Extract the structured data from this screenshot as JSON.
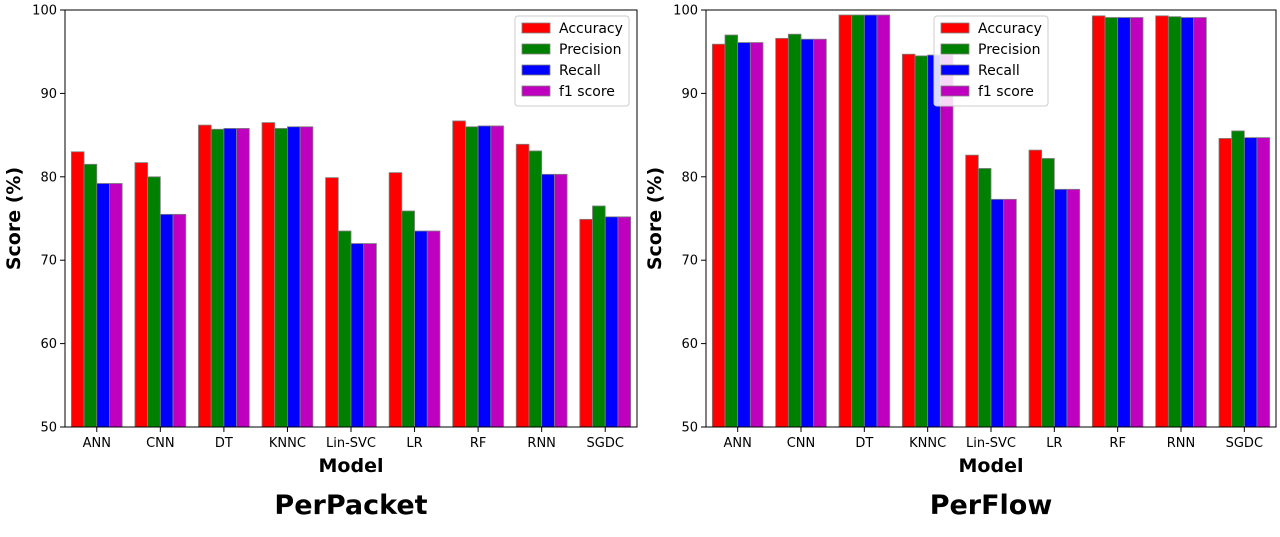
{
  "colors": {
    "Accuracy": "#ff0000",
    "Precision": "#008000",
    "Recall": "#0000ff",
    "f1 score": "#bf00bf",
    "bar_edge": "#808080"
  },
  "chart_data": [
    {
      "type": "bar",
      "title": "PerPacket",
      "xlabel": "Model",
      "ylabel": "Score (%)",
      "ylim": [
        50,
        100
      ],
      "yticks": [
        50,
        60,
        70,
        80,
        90,
        100
      ],
      "legend_position": "top-right",
      "grid": false,
      "categories": [
        "ANN",
        "CNN",
        "DT",
        "KNNC",
        "Lin-SVC",
        "LR",
        "RF",
        "RNN",
        "SGDC"
      ],
      "series": [
        {
          "name": "Accuracy",
          "values": [
            83.0,
            81.7,
            86.2,
            86.5,
            79.9,
            80.5,
            86.7,
            83.9,
            74.9
          ]
        },
        {
          "name": "Precision",
          "values": [
            81.5,
            80.0,
            85.7,
            85.8,
            73.5,
            75.9,
            86.0,
            83.1,
            76.5
          ]
        },
        {
          "name": "Recall",
          "values": [
            79.2,
            75.5,
            85.8,
            86.0,
            72.0,
            73.5,
            86.1,
            80.3,
            75.2
          ]
        },
        {
          "name": "f1 score",
          "values": [
            79.2,
            75.5,
            85.8,
            86.0,
            72.0,
            73.5,
            86.1,
            80.3,
            75.2
          ]
        }
      ]
    },
    {
      "type": "bar",
      "title": "PerFlow",
      "xlabel": "Model",
      "ylabel": "Score (%)",
      "ylim": [
        50,
        100
      ],
      "yticks": [
        50,
        60,
        70,
        80,
        90,
        100
      ],
      "legend_position": "upper-center",
      "grid": false,
      "categories": [
        "ANN",
        "CNN",
        "DT",
        "KNNC",
        "Lin-SVC",
        "LR",
        "RF",
        "RNN",
        "SGDC"
      ],
      "series": [
        {
          "name": "Accuracy",
          "values": [
            95.9,
            96.6,
            99.4,
            94.7,
            82.6,
            83.2,
            99.3,
            99.3,
            84.6
          ]
        },
        {
          "name": "Precision",
          "values": [
            97.0,
            97.1,
            99.4,
            94.5,
            81.0,
            82.2,
            99.1,
            99.2,
            85.5
          ]
        },
        {
          "name": "Recall",
          "values": [
            96.1,
            96.5,
            99.4,
            94.6,
            77.3,
            78.5,
            99.1,
            99.1,
            84.7
          ]
        },
        {
          "name": "f1 score",
          "values": [
            96.1,
            96.5,
            99.4,
            94.6,
            77.3,
            78.5,
            99.1,
            99.1,
            84.7
          ]
        }
      ]
    }
  ]
}
